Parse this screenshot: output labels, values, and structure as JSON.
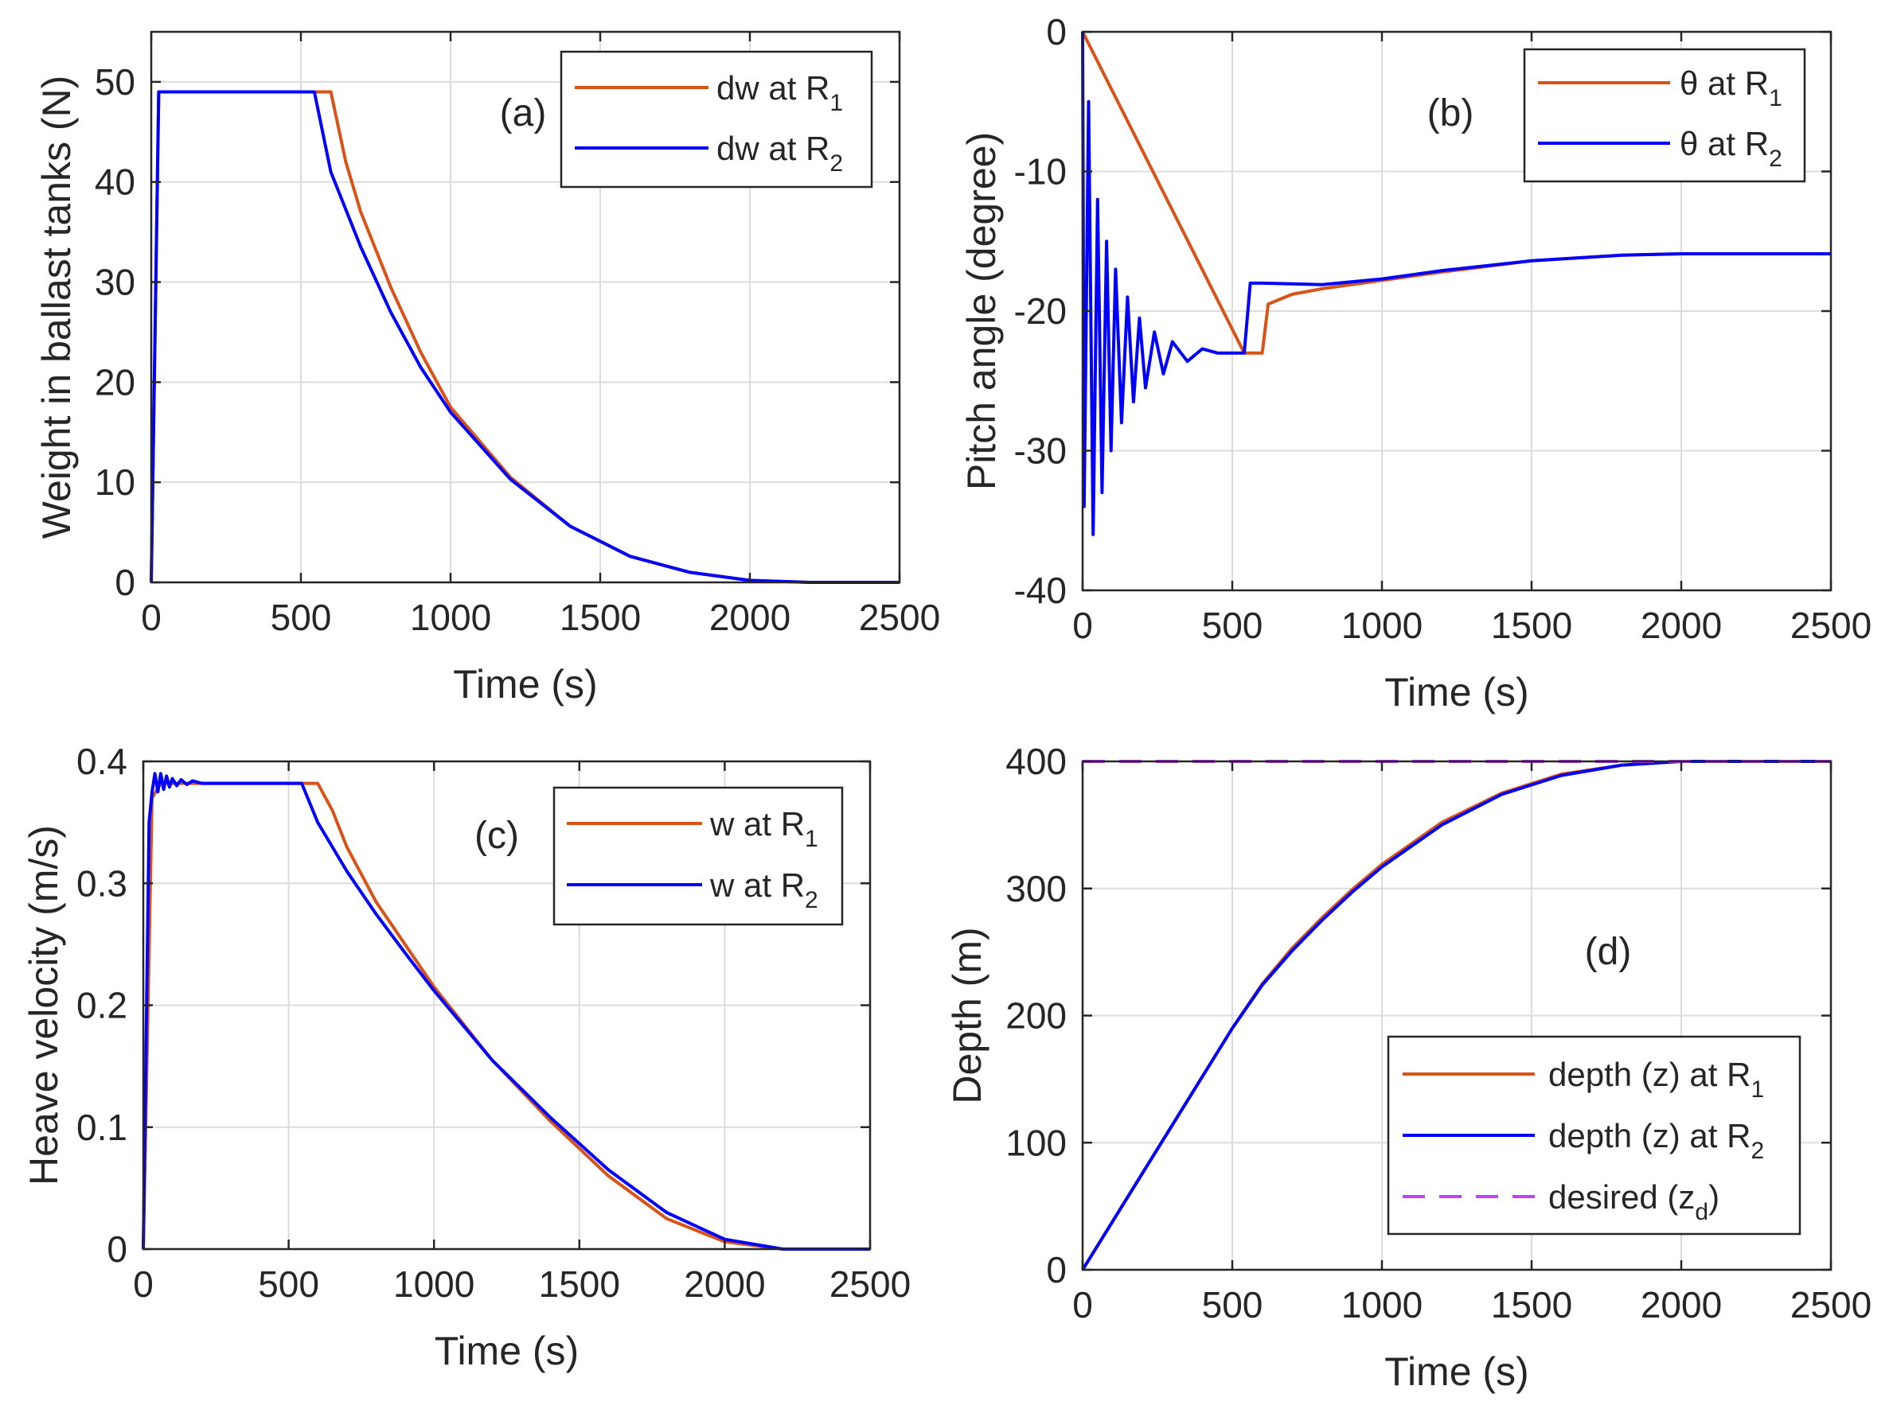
{
  "chart_data": [
    {
      "panel": "a",
      "type": "line",
      "tag": "(a)",
      "xlabel": "Time (s)",
      "ylabel": "Weight in ballast tanks (N)",
      "xlim": [
        0,
        2500
      ],
      "ylim": [
        0,
        55
      ],
      "xticks": [
        0,
        500,
        1000,
        1500,
        2000,
        2500
      ],
      "yticks": [
        0,
        10,
        20,
        30,
        40,
        50
      ],
      "grid": true,
      "legend_position": "top-right",
      "series": [
        {
          "name": "dw at R1",
          "legend_main": "dw at R",
          "legend_sub": "1",
          "color": "#d95319",
          "x": [
            0,
            25,
            50,
            600,
            650,
            700,
            800,
            900,
            1000,
            1200,
            1400,
            1600,
            1800,
            2000,
            2200,
            2500
          ],
          "y": [
            0,
            49,
            49,
            49,
            42,
            37,
            29.5,
            23,
            17.5,
            10.5,
            5.6,
            2.6,
            1.0,
            0.2,
            0,
            0
          ]
        },
        {
          "name": "dw at R2",
          "legend_main": "dw at R",
          "legend_sub": "2",
          "color": "#0000ff",
          "x": [
            0,
            25,
            50,
            545,
            600,
            700,
            800,
            900,
            1000,
            1200,
            1400,
            1600,
            1800,
            2000,
            2200,
            2500
          ],
          "y": [
            0,
            49,
            49,
            49,
            41,
            33.5,
            27,
            21.5,
            17,
            10.3,
            5.6,
            2.6,
            1.0,
            0.2,
            0,
            0
          ]
        }
      ]
    },
    {
      "panel": "b",
      "type": "line",
      "tag": "(b)",
      "xlabel": "Time (s)",
      "ylabel": "Pitch angle (degree)",
      "xlim": [
        0,
        2500
      ],
      "ylim": [
        -40,
        0
      ],
      "xticks": [
        0,
        500,
        1000,
        1500,
        2000,
        2500
      ],
      "yticks": [
        -40,
        -30,
        -20,
        -10,
        0
      ],
      "grid": true,
      "legend_position": "top-right",
      "series": [
        {
          "name": "θ at R1",
          "legend_main": "θ at R",
          "legend_sub": "1",
          "color": "#d95319",
          "x": [
            0,
            540,
            600,
            620,
            700,
            800,
            1000,
            1200,
            1500,
            1800,
            2000,
            2500
          ],
          "y": [
            0,
            -23,
            -23,
            -19.5,
            -18.8,
            -18.4,
            -17.8,
            -17.2,
            -16.4,
            -16.0,
            -15.9,
            -15.9
          ]
        },
        {
          "name": "θ at R2",
          "legend_main": "θ at R",
          "legend_sub": "2",
          "color": "#0000ff",
          "x": [
            0,
            5,
            20,
            35,
            50,
            65,
            80,
            95,
            110,
            130,
            150,
            170,
            190,
            210,
            240,
            270,
            300,
            350,
            400,
            450,
            540,
            560,
            600,
            800,
            1000,
            1200,
            1500,
            1800,
            2000,
            2500
          ],
          "y": [
            0,
            -34,
            -5,
            -36,
            -12,
            -33,
            -15,
            -30,
            -17,
            -28,
            -19,
            -26.5,
            -20.5,
            -25.5,
            -21.5,
            -24.5,
            -22.2,
            -23.6,
            -22.7,
            -23,
            -23,
            -18,
            -18,
            -18.1,
            -17.7,
            -17.1,
            -16.4,
            -16.0,
            -15.9,
            -15.9
          ]
        }
      ]
    },
    {
      "panel": "c",
      "type": "line",
      "tag": "(c)",
      "xlabel": "Time (s)",
      "ylabel": "Heave velocity (m/s)",
      "xlim": [
        0,
        2500
      ],
      "ylim": [
        0,
        0.4
      ],
      "xticks": [
        0,
        500,
        1000,
        1500,
        2000,
        2500
      ],
      "yticks": [
        0,
        0.1,
        0.2,
        0.3,
        0.4
      ],
      "grid": true,
      "legend_position": "top-right",
      "series": [
        {
          "name": "w at R1",
          "legend_main": "w at R",
          "legend_sub": "1",
          "color": "#d95319",
          "x": [
            0,
            30,
            60,
            600,
            650,
            700,
            800,
            900,
            1000,
            1200,
            1400,
            1600,
            1800,
            2000,
            2200,
            2500
          ],
          "y": [
            0,
            0.37,
            0.382,
            0.382,
            0.36,
            0.33,
            0.285,
            0.25,
            0.215,
            0.155,
            0.105,
            0.06,
            0.025,
            0.006,
            0,
            0
          ]
        },
        {
          "name": "w at R2",
          "legend_main": "w at R",
          "legend_sub": "2",
          "color": "#0000ff",
          "x": [
            0,
            20,
            30,
            40,
            50,
            60,
            70,
            80,
            90,
            100,
            115,
            130,
            150,
            170,
            200,
            545,
            600,
            700,
            800,
            900,
            1000,
            1200,
            1400,
            1600,
            1800,
            2000,
            2200,
            2500
          ],
          "y": [
            0,
            0.35,
            0.375,
            0.39,
            0.375,
            0.39,
            0.377,
            0.388,
            0.379,
            0.386,
            0.38,
            0.385,
            0.381,
            0.384,
            0.382,
            0.382,
            0.35,
            0.31,
            0.275,
            0.243,
            0.212,
            0.155,
            0.108,
            0.065,
            0.03,
            0.008,
            0,
            0
          ]
        }
      ]
    },
    {
      "panel": "d",
      "type": "line",
      "tag": "(d)",
      "xlabel": "Time (s)",
      "ylabel": "Depth (m)",
      "xlim": [
        0,
        2500
      ],
      "ylim": [
        0,
        400
      ],
      "xticks": [
        0,
        500,
        1000,
        1500,
        2000,
        2500
      ],
      "yticks": [
        0,
        100,
        200,
        300,
        400
      ],
      "grid": true,
      "legend_position": "bottom-right",
      "series": [
        {
          "name": "depth (z) at R1",
          "legend_main": "depth (z) at R",
          "legend_sub": "1",
          "color": "#d95319",
          "dash": false,
          "x": [
            0,
            500,
            600,
            700,
            800,
            900,
            1000,
            1200,
            1400,
            1600,
            1800,
            2000,
            2200,
            2500
          ],
          "y": [
            0,
            190,
            225,
            253,
            277,
            299,
            319,
            352,
            375,
            390,
            397,
            400,
            400,
            400
          ]
        },
        {
          "name": "depth (z) at R2",
          "legend_main": "depth (z) at R",
          "legend_sub": "2",
          "color": "#0000ff",
          "dash": false,
          "x": [
            0,
            500,
            600,
            700,
            800,
            900,
            1000,
            1200,
            1400,
            1600,
            1800,
            2000,
            2200,
            2500
          ],
          "y": [
            0,
            190,
            224,
            251,
            275,
            297,
            317,
            350,
            374,
            389,
            397,
            400,
            400,
            400
          ]
        },
        {
          "name": "desired (zd)",
          "legend_main": "desired (z",
          "legend_sub": "d",
          "legend_tail": ")",
          "color": "#bf40ff",
          "dash": true,
          "x": [
            0,
            2500
          ],
          "y": [
            400,
            400
          ]
        }
      ]
    }
  ]
}
